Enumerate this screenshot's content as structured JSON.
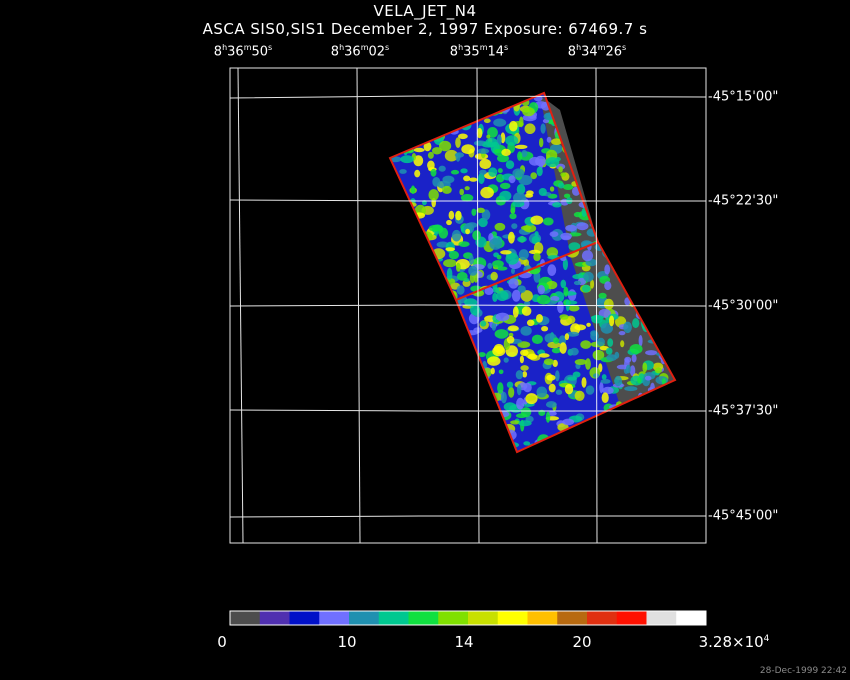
{
  "title": "VELA_JET_N4",
  "subtitle": "ASCA SIS0,SIS1 December 2, 1997 Exposure: 67469.7 s",
  "ra_labels": [
    {
      "h": "8",
      "m": "36",
      "s": "50"
    },
    {
      "h": "8",
      "m": "36",
      "s": "02"
    },
    {
      "h": "8",
      "m": "35",
      "s": "14"
    },
    {
      "h": "8",
      "m": "34",
      "s": "26"
    }
  ],
  "dec_labels": [
    "-45°15'00\"",
    "-45°22'30\"",
    "-45°30'00\"",
    "-45°37'30\"",
    "-45°45'00\""
  ],
  "colorbar": {
    "colors": [
      "#4d4d4d",
      "#5030b0",
      "#0010c8",
      "#7070ff",
      "#2090b0",
      "#00c890",
      "#10e040",
      "#80e000",
      "#c8e000",
      "#ffff00",
      "#ffc000",
      "#b86a10",
      "#e03010",
      "#ff1000",
      "#e0e0e0",
      "#ffffff"
    ],
    "labels": [
      "0",
      "10",
      "14",
      "20"
    ],
    "max_label_base": "3.28×10",
    "max_label_exp": "4"
  },
  "timestamp": "28-Dec-1999 22:42"
}
